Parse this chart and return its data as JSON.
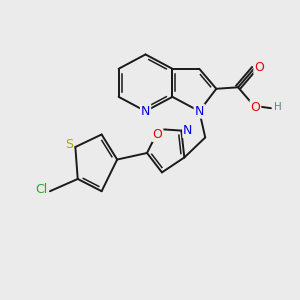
{
  "background_color": "#ebebeb",
  "bond_color": "#1a1a1a",
  "atom_colors": {
    "N": "#0000ee",
    "O": "#ee0000",
    "S": "#aaaa00",
    "Cl": "#22aa22",
    "C": "#1a1a1a",
    "H": "#558888"
  },
  "figsize": [
    3.0,
    3.0
  ],
  "dpi": 100
}
